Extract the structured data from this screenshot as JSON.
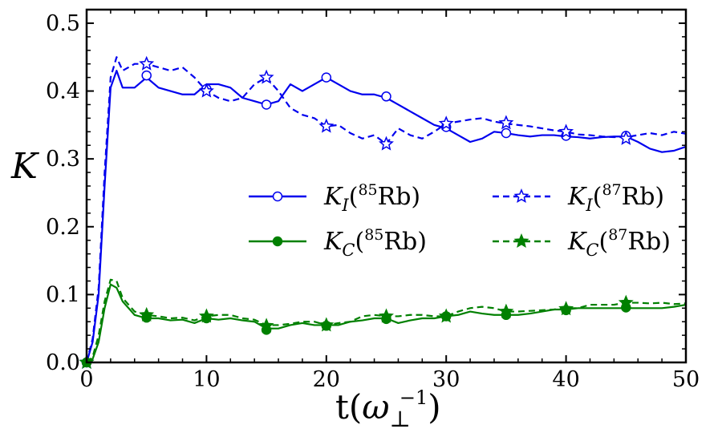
{
  "chart_data": {
    "type": "line",
    "title": "",
    "xlabel": "t(ω⊥⁻¹)",
    "ylabel": "K",
    "xlim": [
      0,
      50
    ],
    "ylim": [
      0,
      0.52
    ],
    "x_ticks": [
      0,
      10,
      20,
      30,
      40,
      50
    ],
    "x_tick_labels": [
      "0",
      "10",
      "20",
      "30",
      "40",
      "50"
    ],
    "y_ticks": [
      0.0,
      0.1,
      0.2,
      0.3,
      0.4,
      0.5
    ],
    "y_tick_labels": [
      "0.0",
      "0.1",
      "0.2",
      "0.3",
      "0.4",
      "0.5"
    ],
    "grid": false,
    "legend_position": "center-right",
    "series": [
      {
        "name": "K_I(85Rb)",
        "label_main": "K",
        "label_sub": "I",
        "label_iso": "85",
        "label_elem": "Rb",
        "color": "#0000ee",
        "dash": "solid",
        "marker": "circle",
        "marker_fill": "#ffffff",
        "x": [
          0,
          0.5,
          1,
          1.5,
          2,
          2.5,
          3,
          4,
          5,
          6,
          7,
          8,
          9,
          10,
          11,
          12,
          13,
          14,
          15,
          16,
          17,
          18,
          19,
          20,
          21,
          22,
          23,
          24,
          25,
          26,
          27,
          28,
          29,
          30,
          31,
          32,
          33,
          34,
          35,
          36,
          37,
          38,
          39,
          40,
          41,
          42,
          43,
          44,
          45,
          46,
          47,
          48,
          49,
          50
        ],
        "values": [
          0,
          0.03,
          0.1,
          0.26,
          0.405,
          0.43,
          0.405,
          0.405,
          0.42,
          0.405,
          0.4,
          0.395,
          0.395,
          0.41,
          0.41,
          0.405,
          0.39,
          0.385,
          0.38,
          0.385,
          0.41,
          0.4,
          0.41,
          0.42,
          0.41,
          0.4,
          0.395,
          0.395,
          0.39,
          0.38,
          0.37,
          0.36,
          0.35,
          0.345,
          0.335,
          0.325,
          0.33,
          0.34,
          0.338,
          0.335,
          0.333,
          0.335,
          0.335,
          0.333,
          0.332,
          0.33,
          0.332,
          0.333,
          0.333,
          0.325,
          0.315,
          0.31,
          0.312,
          0.318
        ],
        "marker_x": [
          0,
          5,
          10,
          15,
          20,
          25,
          30,
          35,
          40,
          45
        ],
        "marker_values": [
          0,
          0.423,
          0.403,
          0.38,
          0.42,
          0.392,
          0.347,
          0.338,
          0.334,
          0.334
        ]
      },
      {
        "name": "K_I(87Rb)",
        "label_main": "K",
        "label_sub": "I",
        "label_iso": "87",
        "label_elem": "Rb",
        "color": "#0000ee",
        "dash": "dashed",
        "marker": "star",
        "marker_fill": "#ffffff",
        "x": [
          0,
          0.5,
          1,
          1.5,
          2,
          2.5,
          3,
          4,
          5,
          6,
          7,
          8,
          9,
          10,
          11,
          12,
          13,
          14,
          15,
          16,
          17,
          18,
          19,
          20,
          21,
          22,
          23,
          24,
          25,
          26,
          27,
          28,
          29,
          30,
          31,
          32,
          33,
          34,
          35,
          36,
          37,
          38,
          39,
          40,
          41,
          42,
          43,
          44,
          45,
          46,
          47,
          48,
          49,
          50
        ],
        "values": [
          0,
          0.035,
          0.11,
          0.28,
          0.42,
          0.45,
          0.43,
          0.44,
          0.44,
          0.435,
          0.43,
          0.435,
          0.42,
          0.4,
          0.39,
          0.385,
          0.39,
          0.41,
          0.42,
          0.4,
          0.375,
          0.365,
          0.36,
          0.348,
          0.35,
          0.338,
          0.33,
          0.335,
          0.322,
          0.345,
          0.335,
          0.33,
          0.34,
          0.352,
          0.355,
          0.358,
          0.36,
          0.355,
          0.352,
          0.35,
          0.348,
          0.345,
          0.342,
          0.34,
          0.336,
          0.335,
          0.333,
          0.332,
          0.332,
          0.335,
          0.338,
          0.335,
          0.34,
          0.337
        ],
        "marker_x": [
          0,
          5,
          10,
          15,
          20,
          25,
          30,
          35,
          40,
          45
        ],
        "marker_values": [
          0,
          0.44,
          0.4,
          0.42,
          0.348,
          0.322,
          0.352,
          0.353,
          0.34,
          0.33
        ]
      },
      {
        "name": "K_C(85Rb)",
        "label_main": "K",
        "label_sub": "C",
        "label_iso": "85",
        "label_elem": "Rb",
        "color": "#008000",
        "dash": "solid",
        "marker": "circle",
        "marker_fill": "#008000",
        "x": [
          0,
          0.5,
          1,
          1.5,
          2,
          2.5,
          3,
          4,
          5,
          6,
          7,
          8,
          9,
          10,
          11,
          12,
          13,
          14,
          15,
          16,
          17,
          18,
          19,
          20,
          21,
          22,
          23,
          24,
          25,
          26,
          27,
          28,
          29,
          30,
          31,
          32,
          33,
          34,
          35,
          36,
          37,
          38,
          39,
          40,
          41,
          42,
          43,
          44,
          45,
          46,
          47,
          48,
          49,
          50
        ],
        "values": [
          0,
          0.005,
          0.03,
          0.08,
          0.115,
          0.11,
          0.09,
          0.07,
          0.065,
          0.065,
          0.062,
          0.063,
          0.058,
          0.065,
          0.063,
          0.065,
          0.062,
          0.06,
          0.05,
          0.05,
          0.055,
          0.058,
          0.055,
          0.055,
          0.055,
          0.06,
          0.062,
          0.065,
          0.065,
          0.058,
          0.062,
          0.065,
          0.065,
          0.068,
          0.07,
          0.075,
          0.072,
          0.07,
          0.07,
          0.07,
          0.072,
          0.075,
          0.078,
          0.078,
          0.08,
          0.08,
          0.08,
          0.08,
          0.08,
          0.08,
          0.08,
          0.08,
          0.082,
          0.085
        ],
        "marker_x": [
          0,
          5,
          10,
          15,
          20,
          25,
          30,
          35,
          40,
          45
        ],
        "marker_values": [
          0,
          0.066,
          0.065,
          0.048,
          0.054,
          0.064,
          0.068,
          0.07,
          0.077,
          0.081
        ]
      },
      {
        "name": "K_C(87Rb)",
        "label_main": "K",
        "label_sub": "C",
        "label_iso": "87",
        "label_elem": "Rb",
        "color": "#008000",
        "dash": "dashed",
        "marker": "star",
        "marker_fill": "#008000",
        "x": [
          0,
          0.5,
          1,
          1.5,
          2,
          2.5,
          3,
          4,
          5,
          6,
          7,
          8,
          9,
          10,
          11,
          12,
          13,
          14,
          15,
          16,
          17,
          18,
          19,
          20,
          21,
          22,
          23,
          24,
          25,
          26,
          27,
          28,
          29,
          30,
          31,
          32,
          33,
          34,
          35,
          36,
          37,
          38,
          39,
          40,
          41,
          42,
          43,
          44,
          45,
          46,
          47,
          48,
          49,
          50
        ],
        "values": [
          0,
          0.008,
          0.04,
          0.09,
          0.122,
          0.12,
          0.095,
          0.075,
          0.07,
          0.068,
          0.065,
          0.066,
          0.062,
          0.068,
          0.07,
          0.07,
          0.065,
          0.063,
          0.055,
          0.055,
          0.057,
          0.06,
          0.06,
          0.055,
          0.058,
          0.06,
          0.068,
          0.07,
          0.068,
          0.068,
          0.07,
          0.07,
          0.068,
          0.068,
          0.075,
          0.08,
          0.082,
          0.08,
          0.075,
          0.075,
          0.076,
          0.077,
          0.078,
          0.08,
          0.08,
          0.085,
          0.085,
          0.085,
          0.088,
          0.088,
          0.087,
          0.088,
          0.086,
          0.087
        ],
        "marker_x": [
          0,
          5,
          10,
          15,
          20,
          25,
          30,
          35,
          40,
          45
        ],
        "marker_values": [
          0,
          0.07,
          0.068,
          0.054,
          0.055,
          0.068,
          0.068,
          0.075,
          0.079,
          0.088
        ]
      }
    ]
  }
}
